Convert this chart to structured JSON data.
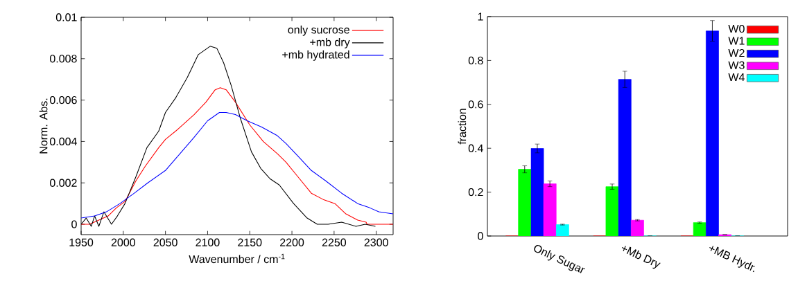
{
  "chart_data": [
    {
      "type": "line",
      "xlabel": "Wavenumber / cm$^{-1}$",
      "ylabel": "Norm. Abs.",
      "xlim": [
        1950,
        2320
      ],
      "ylim": [
        -0.0005,
        0.01
      ],
      "xticks": [
        1950,
        2000,
        2050,
        2100,
        2150,
        2200,
        2250,
        2300
      ],
      "yticks": [
        0,
        0.002,
        0.004,
        0.006,
        0.008,
        0.01
      ],
      "legend": "top right",
      "grid": false,
      "series": [
        {
          "name": "only sucrose",
          "color": "#ff0000",
          "x": [
            1950,
            1960,
            1971,
            1982,
            1992,
            2002,
            2015,
            2026,
            2042,
            2050,
            2065,
            2084,
            2098,
            2109,
            2115,
            2122,
            2133,
            2150,
            2166,
            2183,
            2193,
            2207,
            2223,
            2237,
            2251,
            2264,
            2278,
            2288,
            2289,
            2320
          ],
          "values": [
            0.0,
            0.0,
            0.0002,
            0.0004,
            0.0008,
            0.0011,
            0.0021,
            0.0028,
            0.0037,
            0.0041,
            0.0046,
            0.0053,
            0.0059,
            0.0065,
            0.0066,
            0.0065,
            0.0059,
            0.0048,
            0.004,
            0.0034,
            0.003,
            0.0023,
            0.0015,
            0.0012,
            0.001,
            0.0005,
            0.0002,
            0.0001,
            0.0,
            0.0
          ]
        },
        {
          "name": "+mb dry",
          "color": "#000000",
          "x": [
            1950,
            1956,
            1962,
            1966,
            1971,
            1977,
            1986,
            1993,
            2002,
            2015,
            2028,
            2042,
            2050,
            2062,
            2076,
            2089,
            2103,
            2111,
            2119,
            2128,
            2139,
            2152,
            2163,
            2174,
            2185,
            2202,
            2218,
            2230,
            2243,
            2259,
            2276,
            2287,
            2299
          ],
          "values": [
            0.0,
            0.0003,
            -0.0001,
            0.0004,
            -0.0001,
            0.0006,
            0.0,
            0.0004,
            0.001,
            0.0023,
            0.0037,
            0.0045,
            0.0054,
            0.0061,
            0.0071,
            0.0082,
            0.0086,
            0.0085,
            0.0078,
            0.0067,
            0.0051,
            0.0035,
            0.0027,
            0.0022,
            0.0019,
            0.001,
            0.0003,
            0.0,
            0.0,
            0.0001,
            -0.0001,
            0.0,
            -0.0001
          ]
        },
        {
          "name": "+mb hydrated",
          "color": "#0000ff",
          "x": [
            1950,
            1966,
            1980,
            1996,
            2013,
            2029,
            2050,
            2067,
            2084,
            2100,
            2114,
            2122,
            2133,
            2147,
            2164,
            2182,
            2193,
            2207,
            2223,
            2240,
            2259,
            2278,
            2292,
            2303,
            2320
          ],
          "values": [
            0.0003,
            0.0004,
            0.0006,
            0.001,
            0.0015,
            0.002,
            0.0026,
            0.0034,
            0.0042,
            0.005,
            0.0054,
            0.0054,
            0.0053,
            0.005,
            0.0047,
            0.0043,
            0.0039,
            0.0033,
            0.0026,
            0.0021,
            0.0015,
            0.001,
            0.0008,
            0.0006,
            0.0005
          ]
        }
      ]
    },
    {
      "type": "bar",
      "ylabel": "fraction",
      "categories": [
        "Only Sugar",
        "+Mb Dry",
        "+MB Hydr."
      ],
      "ylim": [
        0,
        1
      ],
      "yticks": [
        0,
        0.2,
        0.4,
        0.6,
        0.8,
        1
      ],
      "legend": "top right",
      "grid": false,
      "series": [
        {
          "name": "W0",
          "color": "#ff0000",
          "values": [
            0,
            0,
            0
          ]
        },
        {
          "name": "W1",
          "color": "#00ff00",
          "values": [
            0.304,
            0.225,
            0.061
          ],
          "errors": [
            0.016,
            0.012,
            0.003
          ]
        },
        {
          "name": "W2",
          "color": "#0000ff",
          "values": [
            0.399,
            0.714,
            0.935
          ],
          "errors": [
            0.02,
            0.037,
            0.047
          ]
        },
        {
          "name": "W3",
          "color": "#ff00ff",
          "values": [
            0.238,
            0.072,
            0.006
          ],
          "errors": [
            0.013,
            0.003,
            null
          ]
        },
        {
          "name": "W4",
          "color": "#00ffff",
          "values": [
            0.052,
            0,
            0
          ],
          "errors": [
            0.002,
            null,
            null
          ]
        }
      ]
    }
  ]
}
